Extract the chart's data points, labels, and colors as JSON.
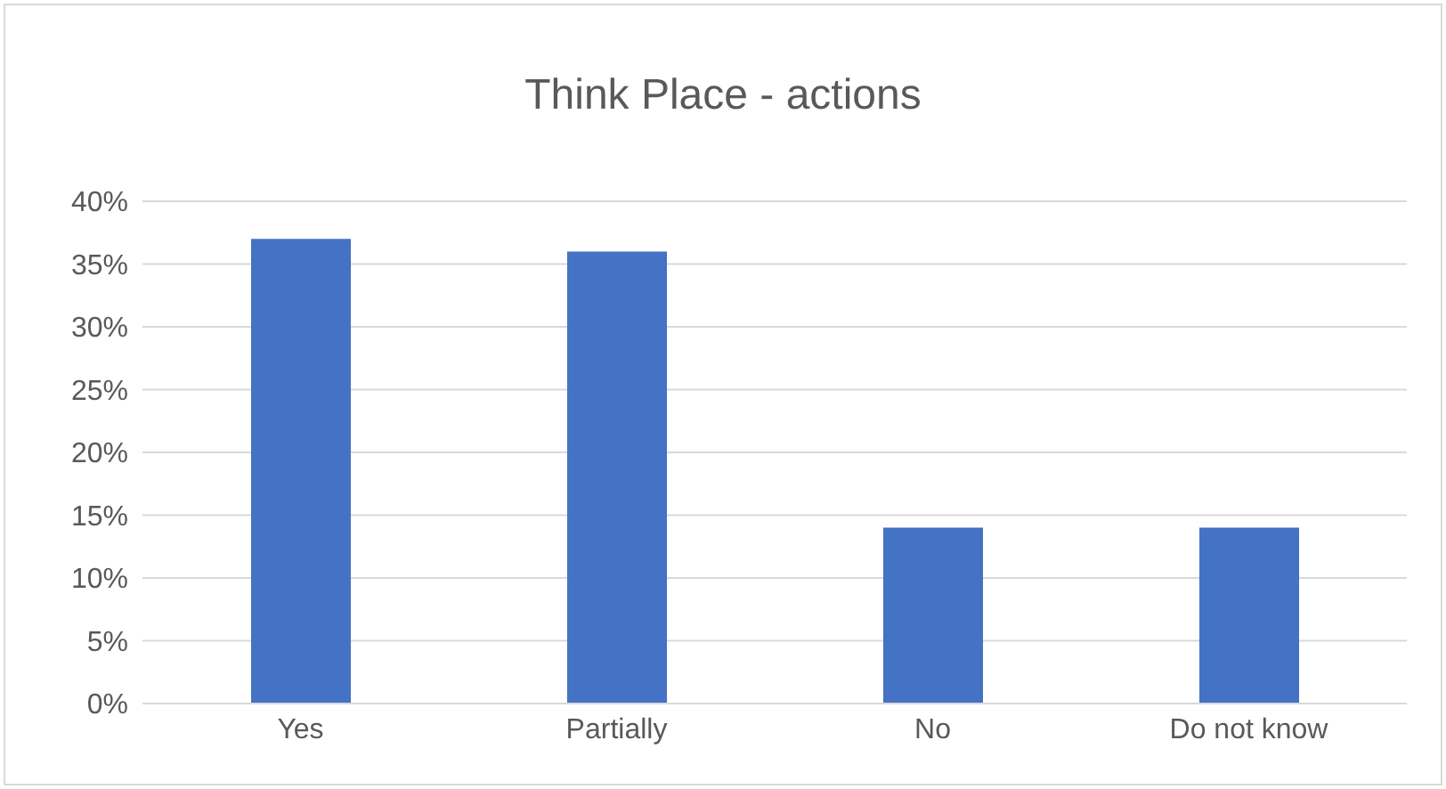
{
  "chart_data": {
    "type": "bar",
    "title": "Think Place - actions",
    "categories": [
      "Yes",
      "Partially",
      "No",
      "Do not know"
    ],
    "values": [
      37,
      36,
      14,
      14
    ],
    "color": "#4472c4",
    "ylim": [
      0,
      40
    ],
    "yticks": [
      {
        "value": 0,
        "label": "0%"
      },
      {
        "value": 5,
        "label": "5%"
      },
      {
        "value": 10,
        "label": "10%"
      },
      {
        "value": 15,
        "label": "15%"
      },
      {
        "value": 20,
        "label": "20%"
      },
      {
        "value": 25,
        "label": "25%"
      },
      {
        "value": 30,
        "label": "30%"
      },
      {
        "value": 35,
        "label": "35%"
      },
      {
        "value": 40,
        "label": "40%"
      }
    ],
    "grid": "y"
  }
}
